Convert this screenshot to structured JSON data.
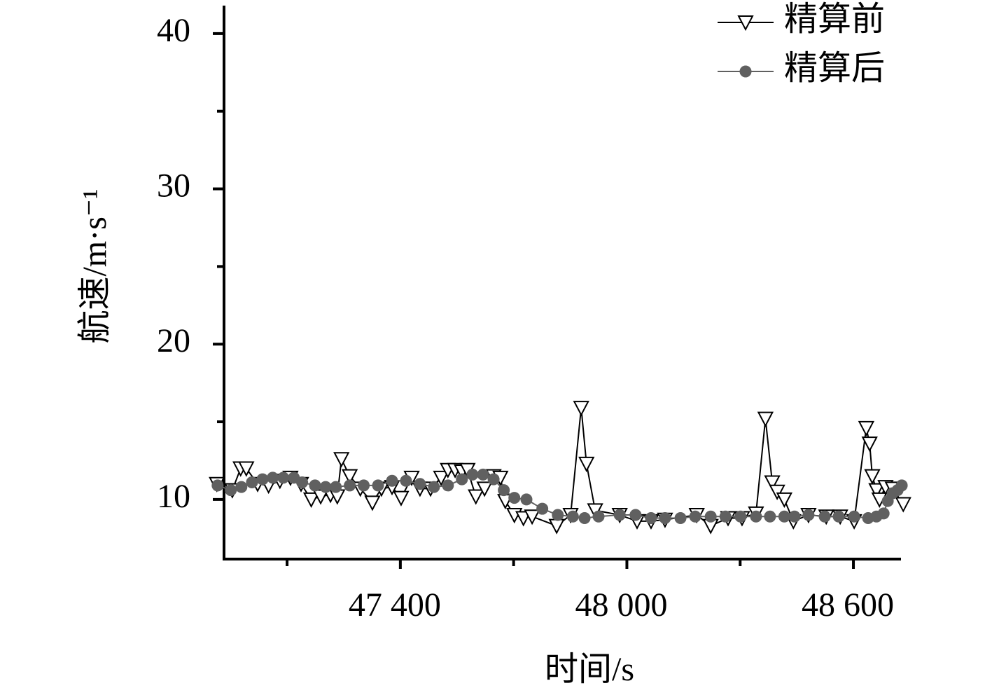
{
  "chart_data": {
    "type": "line",
    "xlabel": "时间/s",
    "ylabel": "航速/m·s⁻¹",
    "xlim": [
      46933,
      48726
    ],
    "ylim": [
      6.16,
      41.8
    ],
    "xticks": [
      {
        "value": 47400,
        "label": "47 400"
      },
      {
        "value": 48000,
        "label": "48 000"
      },
      {
        "value": 48600,
        "label": "48 600"
      }
    ],
    "xminor": [
      47100,
      47700,
      48300
    ],
    "yticks": [
      10,
      20,
      30,
      40
    ],
    "yminor": [
      15,
      25,
      35
    ],
    "legend": "top-right",
    "series": [
      {
        "name": "精算前",
        "color": "#000000",
        "marker": "triangle-down",
        "x": [
          46914,
          46955,
          46977,
          46992,
          47022,
          47051,
          47081,
          47109,
          47137,
          47164,
          47189,
          47215,
          47233,
          47244,
          47266,
          47294,
          47326,
          47350,
          47378,
          47402,
          47430,
          47452,
          47480,
          47508,
          47526,
          47545,
          47563,
          47578,
          47600,
          47623,
          47647,
          47665,
          47678,
          47702,
          47726,
          47749,
          47814,
          47851,
          47879,
          47893,
          47916,
          47981,
          48027,
          48064,
          48101,
          48185,
          48222,
          48268,
          48305,
          48342,
          48367,
          48385,
          48398,
          48417,
          48441,
          48481,
          48528,
          48565,
          48602,
          48634,
          48643,
          48650,
          48661,
          48669,
          48685,
          48704,
          48732
        ],
        "values": [
          11.0,
          10.6,
          12.0,
          12.0,
          11.0,
          10.9,
          11.2,
          11.4,
          11.0,
          10.0,
          10.2,
          10.3,
          10.2,
          12.6,
          11.5,
          10.7,
          9.8,
          10.7,
          10.8,
          10.1,
          11.4,
          10.7,
          10.7,
          11.4,
          11.9,
          11.9,
          11.8,
          11.9,
          10.2,
          10.7,
          11.5,
          11.4,
          9.9,
          9.0,
          8.8,
          8.9,
          8.3,
          9.0,
          15.9,
          12.3,
          9.3,
          9.0,
          8.6,
          8.6,
          8.7,
          9.0,
          8.3,
          8.8,
          8.8,
          9.1,
          15.2,
          11.1,
          10.5,
          10.0,
          8.6,
          9.0,
          8.9,
          8.9,
          8.6,
          14.6,
          13.6,
          11.5,
          10.6,
          10.0,
          10.8,
          10.7,
          9.7
        ]
      },
      {
        "name": "精算后",
        "color": "#606060",
        "marker": "circle",
        "x": [
          46916,
          46951,
          46979,
          47007,
          47035,
          47062,
          47090,
          47118,
          47140,
          47174,
          47202,
          47229,
          47266,
          47303,
          47341,
          47378,
          47415,
          47452,
          47489,
          47526,
          47563,
          47591,
          47619,
          47647,
          47674,
          47702,
          47734,
          47776,
          47817,
          47857,
          47888,
          47925,
          47981,
          48023,
          48064,
          48101,
          48142,
          48181,
          48222,
          48261,
          48301,
          48342,
          48379,
          48417,
          48444,
          48481,
          48524,
          48561,
          48602,
          48639,
          48661,
          48680,
          48691,
          48704,
          48717,
          48728
        ],
        "values": [
          10.9,
          10.6,
          10.8,
          11.1,
          11.3,
          11.4,
          11.4,
          11.4,
          11.1,
          10.9,
          10.8,
          10.8,
          10.9,
          10.9,
          10.9,
          11.2,
          11.2,
          11.0,
          10.8,
          10.9,
          11.3,
          11.6,
          11.6,
          11.3,
          10.6,
          10.1,
          10.0,
          9.4,
          9.0,
          8.9,
          8.8,
          8.9,
          9.0,
          9.0,
          8.8,
          8.8,
          8.8,
          8.9,
          8.9,
          8.9,
          8.9,
          8.9,
          8.9,
          8.9,
          8.9,
          9.0,
          8.9,
          8.9,
          8.9,
          8.8,
          8.9,
          9.1,
          9.9,
          10.4,
          10.6,
          10.9
        ]
      }
    ]
  }
}
